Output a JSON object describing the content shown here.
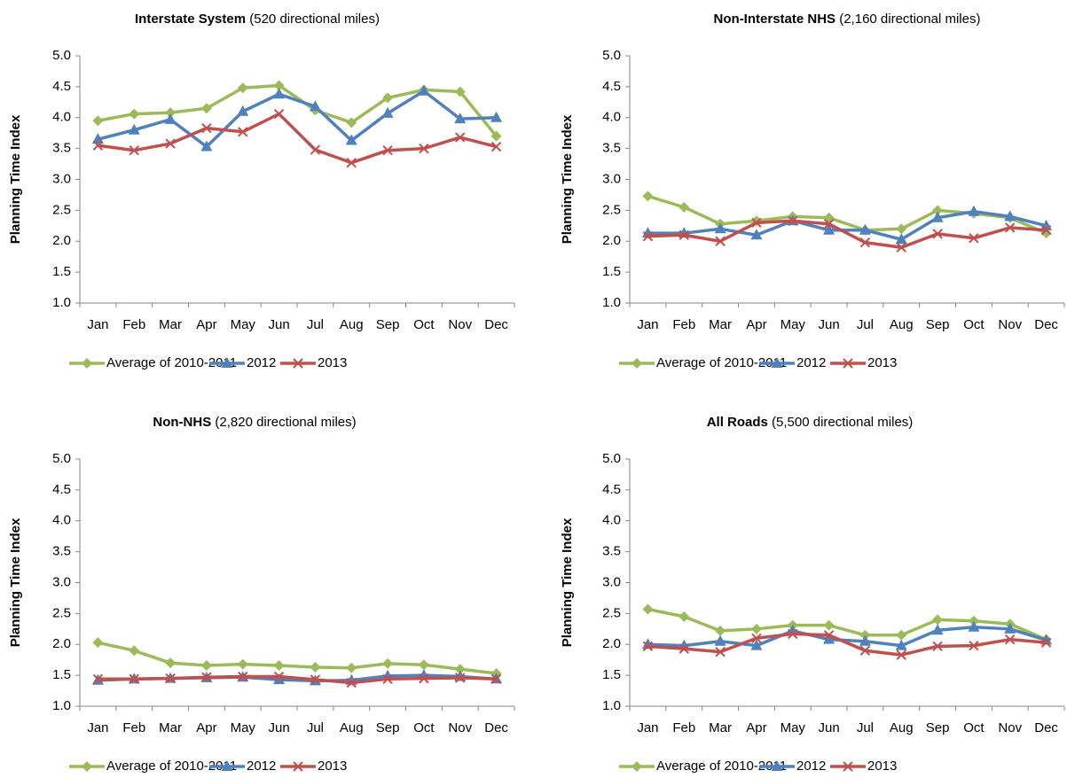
{
  "chart_data": [
    {
      "type": "line",
      "title": "Interstate System",
      "subtitle": "(520 directional miles)",
      "y_label": "Planning Time Index",
      "categories": [
        "Jan",
        "Feb",
        "Mar",
        "Apr",
        "May",
        "Jun",
        "Jul",
        "Aug",
        "Sep",
        "Oct",
        "Nov",
        "Dec"
      ],
      "ylim": [
        1,
        5
      ],
      "yticks": [
        {
          "value": 1,
          "label": "1.0"
        },
        1.5,
        {
          "value": 2,
          "label": "2.0"
        },
        2.5,
        {
          "value": 3,
          "label": "3.0"
        },
        3.5,
        {
          "value": 4,
          "label": "4.0"
        },
        4.5,
        {
          "value": 5,
          "label": "5.0"
        }
      ],
      "legend": "bottom",
      "series": [
        {
          "name": "Average of 2010-2011",
          "color": "#9BBB59",
          "marker": "diamond",
          "values": [
            3.95,
            4.06,
            4.08,
            4.15,
            4.48,
            4.52,
            4.12,
            3.92,
            4.32,
            4.45,
            4.42,
            3.7
          ]
        },
        {
          "name": "2012",
          "color": "#4F81BD",
          "marker": "triangle",
          "values": [
            3.65,
            3.8,
            3.97,
            3.53,
            4.1,
            4.38,
            4.18,
            3.63,
            4.07,
            4.43,
            3.98,
            4.0
          ]
        },
        {
          "name": "2013",
          "color": "#C0504D",
          "marker": "x",
          "values": [
            3.55,
            3.47,
            3.58,
            3.83,
            3.77,
            4.06,
            3.48,
            3.27,
            3.47,
            3.5,
            3.68,
            3.53
          ]
        }
      ]
    },
    {
      "type": "line",
      "title": "Non-Interstate NHS",
      "subtitle": "(2,160 directional miles)",
      "y_label": "Planning Time Index",
      "categories": [
        "Jan",
        "Feb",
        "Mar",
        "Apr",
        "May",
        "Jun",
        "Jul",
        "Aug",
        "Sep",
        "Oct",
        "Nov",
        "Dec"
      ],
      "ylim": [
        1,
        5
      ],
      "yticks": [
        {
          "value": 1,
          "label": "1.0"
        },
        1.5,
        {
          "value": 2,
          "label": "2.0"
        },
        2.5,
        {
          "value": 3,
          "label": "3.0"
        },
        3.5,
        {
          "value": 4,
          "label": "4.0"
        },
        4.5,
        {
          "value": 5,
          "label": "5.0"
        }
      ],
      "legend": "bottom",
      "series": [
        {
          "name": "Average of 2010-2011",
          "color": "#9BBB59",
          "marker": "diamond",
          "values": [
            2.73,
            2.55,
            2.28,
            2.33,
            2.4,
            2.38,
            2.18,
            2.2,
            2.5,
            2.45,
            2.38,
            2.13
          ]
        },
        {
          "name": "2012",
          "color": "#4F81BD",
          "marker": "triangle",
          "values": [
            2.13,
            2.13,
            2.2,
            2.1,
            2.33,
            2.18,
            2.18,
            2.03,
            2.38,
            2.48,
            2.4,
            2.25
          ]
        },
        {
          "name": "2013",
          "color": "#C0504D",
          "marker": "x",
          "values": [
            2.08,
            2.1,
            2.0,
            2.3,
            2.33,
            2.28,
            1.98,
            1.9,
            2.12,
            2.05,
            2.22,
            2.18
          ]
        }
      ]
    },
    {
      "type": "line",
      "title": "Non-NHS",
      "subtitle": "(2,820 directional miles)",
      "y_label": "Planning Time Index",
      "categories": [
        "Jan",
        "Feb",
        "Mar",
        "Apr",
        "May",
        "Jun",
        "Jul",
        "Aug",
        "Sep",
        "Oct",
        "Nov",
        "Dec"
      ],
      "ylim": [
        1,
        5
      ],
      "yticks": [
        {
          "value": 1,
          "label": "1.0"
        },
        1.5,
        {
          "value": 2,
          "label": "2.0"
        },
        2.5,
        {
          "value": 3,
          "label": "3.0"
        },
        3.5,
        {
          "value": 4,
          "label": "4.0"
        },
        4.5,
        {
          "value": 5,
          "label": "5.0"
        }
      ],
      "legend": "bottom",
      "series": [
        {
          "name": "Average of 2010-2011",
          "color": "#9BBB59",
          "marker": "diamond",
          "values": [
            2.03,
            1.9,
            1.7,
            1.66,
            1.68,
            1.66,
            1.63,
            1.62,
            1.69,
            1.67,
            1.6,
            1.53
          ]
        },
        {
          "name": "2012",
          "color": "#4F81BD",
          "marker": "triangle",
          "values": [
            1.42,
            1.44,
            1.45,
            1.46,
            1.47,
            1.43,
            1.41,
            1.42,
            1.49,
            1.5,
            1.48,
            1.44
          ]
        },
        {
          "name": "2013",
          "color": "#C0504D",
          "marker": "x",
          "values": [
            1.44,
            1.44,
            1.45,
            1.47,
            1.48,
            1.48,
            1.43,
            1.38,
            1.44,
            1.45,
            1.46,
            1.44
          ]
        }
      ]
    },
    {
      "type": "line",
      "title": "All Roads",
      "subtitle": "(5,500 directional miles)",
      "y_label": "Planning Time Index",
      "categories": [
        "Jan",
        "Feb",
        "Mar",
        "Apr",
        "May",
        "Jun",
        "Jul",
        "Aug",
        "Sep",
        "Oct",
        "Nov",
        "Dec"
      ],
      "ylim": [
        1,
        5
      ],
      "yticks": [
        {
          "value": 1,
          "label": "1.0"
        },
        1.5,
        {
          "value": 2,
          "label": "2.0"
        },
        2.5,
        {
          "value": 3,
          "label": "3.0"
        },
        3.5,
        {
          "value": 4,
          "label": "4.0"
        },
        4.5,
        {
          "value": 5,
          "label": "5.0"
        }
      ],
      "legend": "bottom",
      "series": [
        {
          "name": "Average of 2010-2011",
          "color": "#9BBB59",
          "marker": "diamond",
          "values": [
            2.57,
            2.45,
            2.22,
            2.25,
            2.31,
            2.31,
            2.15,
            2.15,
            2.4,
            2.38,
            2.33,
            2.08
          ]
        },
        {
          "name": "2012",
          "color": "#4F81BD",
          "marker": "triangle",
          "values": [
            2.0,
            1.98,
            2.05,
            1.98,
            2.22,
            2.08,
            2.05,
            1.98,
            2.23,
            2.28,
            2.25,
            2.07
          ]
        },
        {
          "name": "2013",
          "color": "#C0504D",
          "marker": "x",
          "values": [
            1.97,
            1.93,
            1.88,
            2.1,
            2.17,
            2.15,
            1.9,
            1.83,
            1.97,
            1.98,
            2.08,
            2.03
          ]
        }
      ]
    }
  ]
}
